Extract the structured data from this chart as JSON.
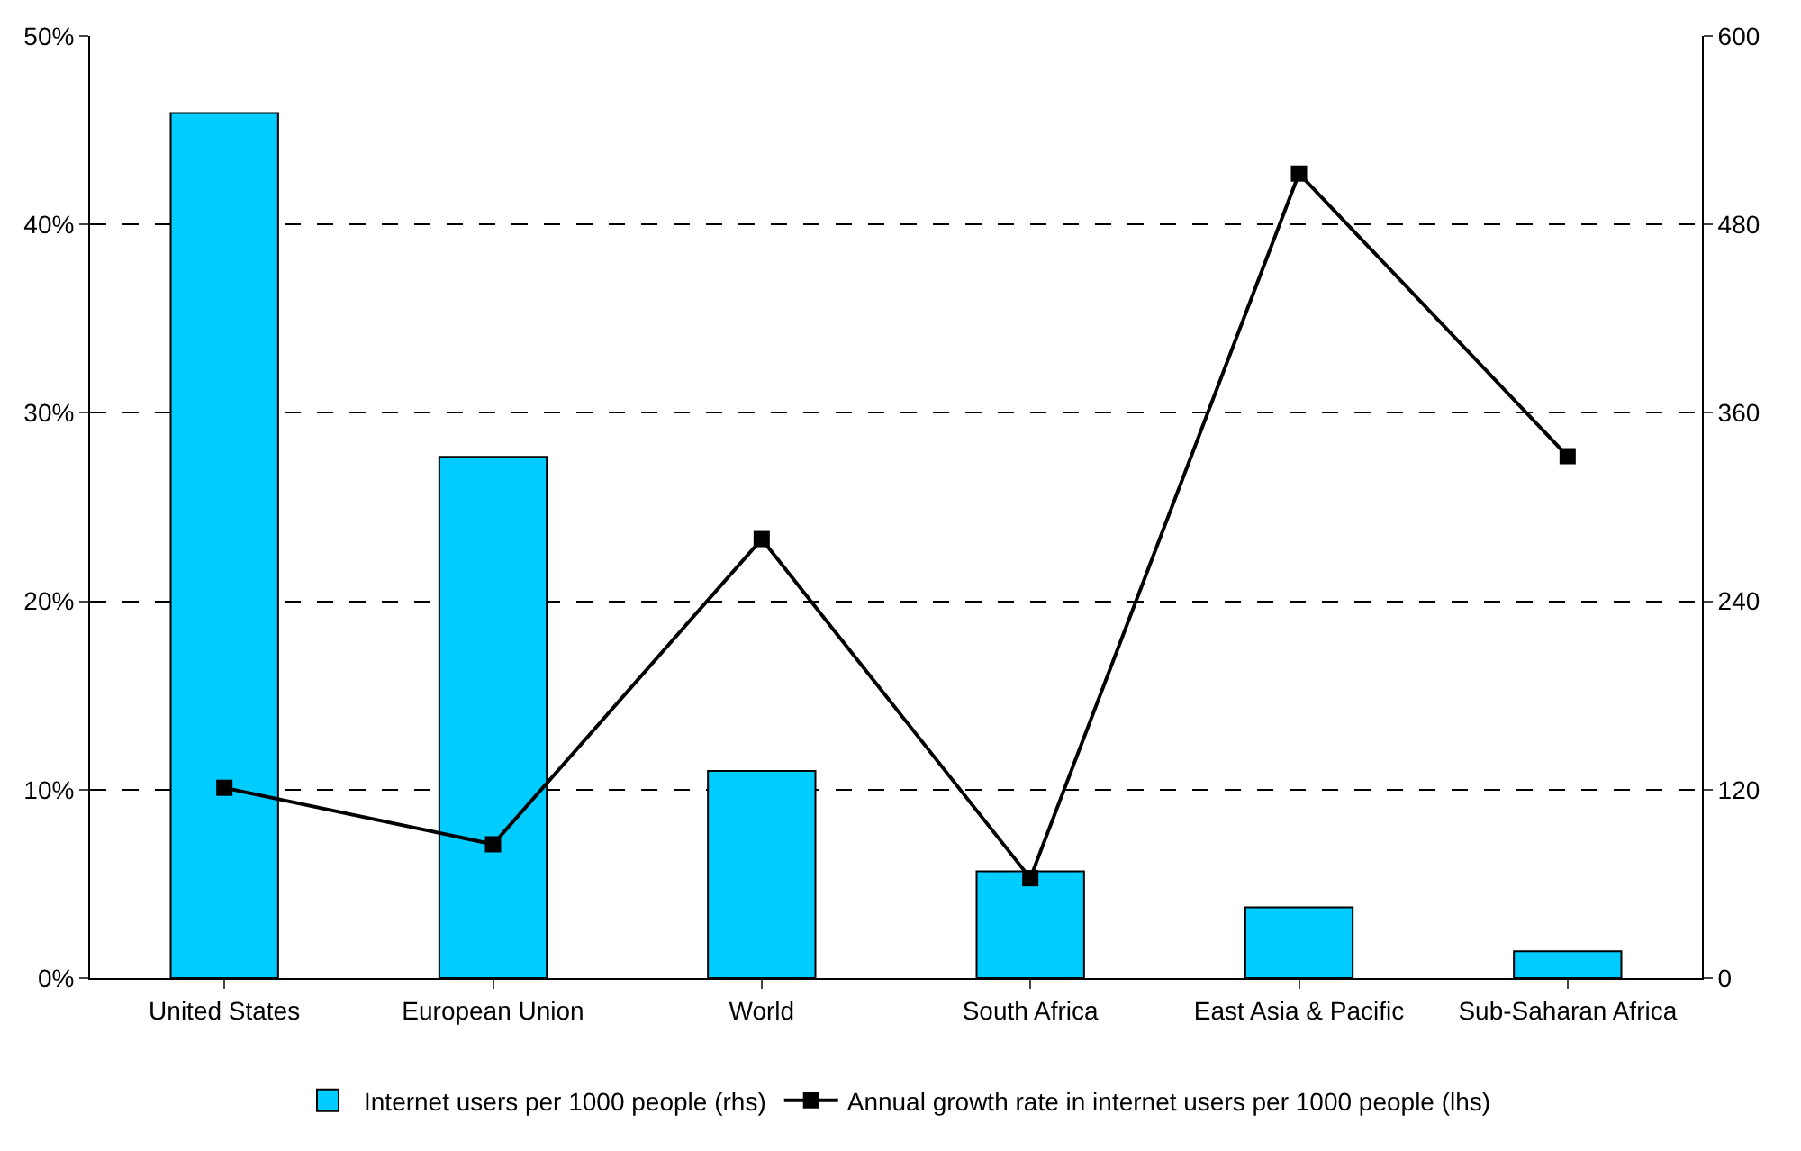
{
  "chart_data": {
    "type": "bar",
    "categories": [
      "United States",
      "European Union",
      "World",
      "South Africa",
      "East Asia & Pacific",
      "Sub-Saharan Africa"
    ],
    "series": [
      {
        "name": "Internet users per 1000 people (rhs)",
        "axis": "y2",
        "color": "#00ccff",
        "values": [
          551,
          332,
          132,
          68,
          45,
          17
        ]
      },
      {
        "name": "Annual growth rate in internet users per 1000 people (lhs)",
        "type": "line",
        "color": "#000000",
        "values": [
          10.1,
          7.1,
          23.3,
          5.3,
          42.7,
          27.7
        ]
      }
    ],
    "ylim": [
      0,
      50
    ],
    "yticks": [
      {
        "value": 0,
        "label": "0%"
      },
      {
        "value": 10,
        "label": "10%"
      },
      {
        "value": 20,
        "label": "20%"
      },
      {
        "value": 30,
        "label": "30%"
      },
      {
        "value": 40,
        "label": "40%"
      },
      {
        "value": 50,
        "label": "50%"
      }
    ],
    "y2lim": [
      0,
      600
    ],
    "y2ticks": [
      0,
      120,
      240,
      360,
      480,
      600
    ],
    "grid": "y",
    "legend": "bottom",
    "marker": "square",
    "line_style": "solid"
  }
}
